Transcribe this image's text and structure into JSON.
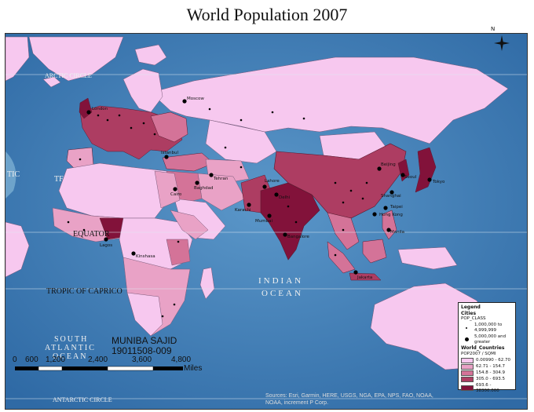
{
  "title": "World Population 2007",
  "labels": {
    "arctic_circle": "ARCTIC CIRCLE",
    "tropic_cancer_fragment": "TF",
    "equator": "EQUATOR",
    "tropic_capricorn": "TROPIC OF CAPRICO",
    "antarctic_circle": "ANTARCTIC CIRCLE",
    "indian_ocean_1": "INDIAN",
    "indian_ocean_2": "OCEAN",
    "south_atlantic_1": "SOUTH",
    "south_atlantic_2": "ATLANTIC",
    "south_atlantic_3": "OCEAN",
    "atlantic_fragment": "TIC"
  },
  "cities": {
    "moscow": "Moscow",
    "london": "London",
    "istanbul": "Istanbul",
    "tehran": "Tehran",
    "baghdad": "Baghdad",
    "cairo": "Cairo",
    "karachi": "Karachi",
    "lahore": "Lahore",
    "delhi": "Delhi",
    "mumbai": "Mumbai",
    "bangalore": "Bangalore",
    "lagos": "Lagos",
    "kinshasa": "Kinshasa",
    "beijing": "Beijing",
    "seoul": "Seoul",
    "tokyo": "Tokyo",
    "shanghai": "Shanghai",
    "taipei": "Taipei",
    "hong_kong": "Hong Kong",
    "manila": "Manila",
    "jakarta": "Jakarta"
  },
  "author": {
    "name": "MUNIBA SAJID",
    "id": "19011508-009"
  },
  "scale_bar": {
    "ticks": [
      "0",
      "600",
      "1,200",
      "2,400",
      "3,600",
      "4,800"
    ],
    "unit": "Miles"
  },
  "north_arrow": {
    "label": "N"
  },
  "legend": {
    "title": "Legend",
    "cities_heading": "Cities",
    "pop_class": "POP_CLASS",
    "city_classes": [
      "1,000,000 to 4,999,999",
      "5,000,000 and greater"
    ],
    "countries_heading": "World_Countries",
    "countries_field": "POP2007 / SQMI",
    "classes": [
      {
        "label": "0.00990 - 62.70",
        "color": "#f7c8ef"
      },
      {
        "label": "62.71 - 154.7",
        "color": "#e9a2c6"
      },
      {
        "label": "154.8 - 304.9",
        "color": "#d47398"
      },
      {
        "label": "305.0 - 693.5",
        "color": "#ad3d62"
      },
      {
        "label": "693.6 - 38300.000",
        "color": "#82123a"
      }
    ]
  },
  "credits": {
    "line1": "Sources: Esri, Garmin, HERE, USGS, NGA, EPA, NPS, FAO, NOAA,",
    "line2": "NOAA, increment P Corp."
  },
  "colors": {
    "ocean": "#3f7fb8",
    "graticule": "#dfe9f2"
  }
}
